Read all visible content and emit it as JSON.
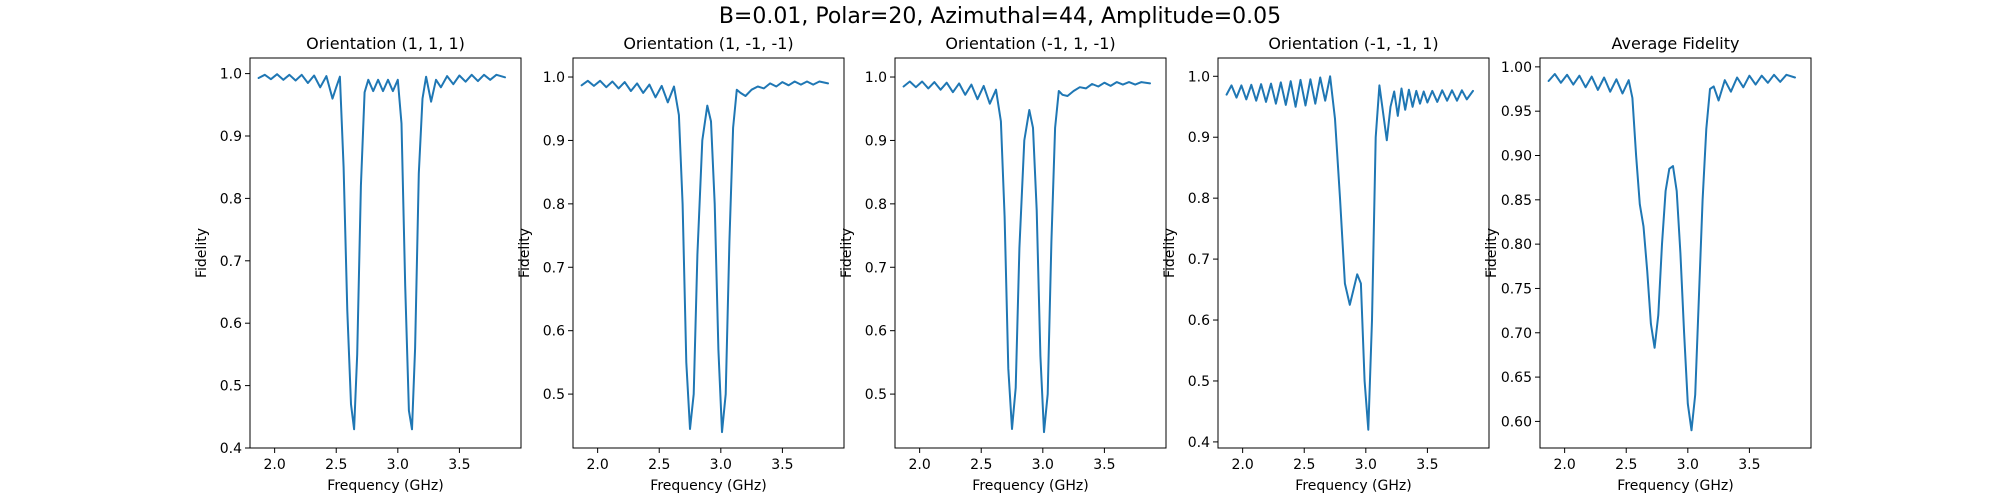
{
  "figure": {
    "suptitle": "B=0.01, Polar=20, Azimuthal=44, Amplitude=0.05",
    "line_color": "#1f77b4"
  },
  "chart_data": [
    {
      "type": "line",
      "title": "Orientation (1, 1, 1)",
      "xlabel": "Frequency (GHz)",
      "ylabel": "Fidelity",
      "xlim": [
        1.8,
        4.0
      ],
      "ylim": [
        0.4,
        1.025
      ],
      "xticks": [
        "2.0",
        "2.5",
        "3.0",
        "3.5"
      ],
      "yticks": [
        "0.4",
        "0.5",
        "0.6",
        "0.7",
        "0.8",
        "0.9",
        "1.0"
      ],
      "series": [
        {
          "x": [
            1.87,
            1.92,
            1.97,
            2.02,
            2.07,
            2.12,
            2.17,
            2.22,
            2.27,
            2.32,
            2.37,
            2.42,
            2.47,
            2.5,
            2.53,
            2.56,
            2.59,
            2.62,
            2.645,
            2.67,
            2.7,
            2.73,
            2.76,
            2.8,
            2.84,
            2.88,
            2.92,
            2.96,
            3.0,
            3.03,
            3.06,
            3.09,
            3.115,
            3.14,
            3.17,
            3.2,
            3.23,
            3.27,
            3.31,
            3.35,
            3.4,
            3.45,
            3.5,
            3.55,
            3.6,
            3.65,
            3.7,
            3.75,
            3.8,
            3.87
          ],
          "y": [
            0.993,
            0.998,
            0.991,
            0.999,
            0.99,
            0.998,
            0.989,
            0.998,
            0.985,
            0.997,
            0.978,
            0.996,
            0.96,
            0.978,
            0.995,
            0.85,
            0.62,
            0.47,
            0.43,
            0.55,
            0.82,
            0.97,
            0.99,
            0.972,
            0.99,
            0.972,
            0.99,
            0.972,
            0.99,
            0.92,
            0.66,
            0.46,
            0.43,
            0.56,
            0.84,
            0.96,
            0.995,
            0.955,
            0.99,
            0.978,
            0.996,
            0.983,
            0.997,
            0.987,
            0.998,
            0.988,
            0.998,
            0.99,
            0.998,
            0.994
          ]
        }
      ]
    },
    {
      "type": "line",
      "title": "Orientation (1, -1, -1)",
      "xlabel": "Frequency (GHz)",
      "ylabel": "Fidelity",
      "xlim": [
        1.8,
        4.0
      ],
      "ylim": [
        0.415,
        1.03
      ],
      "xticks": [
        "2.0",
        "2.5",
        "3.0",
        "3.5"
      ],
      "yticks": [
        "0.5",
        "0.6",
        "0.7",
        "0.8",
        "0.9",
        "1.0"
      ],
      "series": [
        {
          "x": [
            1.87,
            1.92,
            1.97,
            2.02,
            2.07,
            2.12,
            2.17,
            2.22,
            2.27,
            2.32,
            2.37,
            2.42,
            2.47,
            2.52,
            2.57,
            2.62,
            2.66,
            2.69,
            2.72,
            2.75,
            2.78,
            2.81,
            2.85,
            2.89,
            2.92,
            2.95,
            2.98,
            3.01,
            3.04,
            3.07,
            3.1,
            3.13,
            3.16,
            3.2,
            3.25,
            3.3,
            3.35,
            3.4,
            3.45,
            3.5,
            3.55,
            3.6,
            3.65,
            3.7,
            3.75,
            3.8,
            3.87
          ],
          "y": [
            0.987,
            0.994,
            0.986,
            0.994,
            0.984,
            0.993,
            0.982,
            0.992,
            0.978,
            0.99,
            0.975,
            0.988,
            0.968,
            0.986,
            0.96,
            0.985,
            0.94,
            0.8,
            0.55,
            0.445,
            0.5,
            0.72,
            0.9,
            0.955,
            0.93,
            0.8,
            0.57,
            0.44,
            0.5,
            0.74,
            0.92,
            0.98,
            0.975,
            0.97,
            0.98,
            0.985,
            0.982,
            0.99,
            0.985,
            0.992,
            0.987,
            0.993,
            0.988,
            0.993,
            0.988,
            0.993,
            0.99
          ]
        }
      ]
    },
    {
      "type": "line",
      "title": "Orientation (-1, 1, -1)",
      "xlabel": "Frequency (GHz)",
      "ylabel": "Fidelity",
      "xlim": [
        1.8,
        4.0
      ],
      "ylim": [
        0.415,
        1.03
      ],
      "xticks": [
        "2.0",
        "2.5",
        "3.0",
        "3.5"
      ],
      "yticks": [
        "0.5",
        "0.6",
        "0.7",
        "0.8",
        "0.9",
        "1.0"
      ],
      "series": [
        {
          "x": [
            1.87,
            1.92,
            1.97,
            2.02,
            2.07,
            2.12,
            2.17,
            2.22,
            2.27,
            2.32,
            2.37,
            2.42,
            2.47,
            2.52,
            2.57,
            2.62,
            2.66,
            2.69,
            2.72,
            2.75,
            2.78,
            2.81,
            2.85,
            2.89,
            2.92,
            2.95,
            2.98,
            3.01,
            3.04,
            3.07,
            3.1,
            3.13,
            3.16,
            3.2,
            3.25,
            3.3,
            3.35,
            3.4,
            3.45,
            3.5,
            3.55,
            3.6,
            3.65,
            3.7,
            3.75,
            3.8,
            3.87
          ],
          "y": [
            0.985,
            0.993,
            0.984,
            0.993,
            0.982,
            0.992,
            0.98,
            0.991,
            0.976,
            0.99,
            0.972,
            0.988,
            0.965,
            0.986,
            0.958,
            0.98,
            0.93,
            0.78,
            0.54,
            0.445,
            0.51,
            0.73,
            0.9,
            0.948,
            0.92,
            0.79,
            0.56,
            0.44,
            0.5,
            0.74,
            0.92,
            0.978,
            0.972,
            0.97,
            0.978,
            0.984,
            0.982,
            0.989,
            0.985,
            0.991,
            0.986,
            0.992,
            0.988,
            0.992,
            0.988,
            0.992,
            0.99
          ]
        }
      ]
    },
    {
      "type": "line",
      "title": "Orientation (-1, -1, 1)",
      "xlabel": "Frequency (GHz)",
      "ylabel": "Fidelity",
      "xlim": [
        1.8,
        4.0
      ],
      "ylim": [
        0.39,
        1.03
      ],
      "xticks": [
        "2.0",
        "2.5",
        "3.0",
        "3.5"
      ],
      "yticks": [
        "0.4",
        "0.5",
        "0.6",
        "0.7",
        "0.8",
        "0.9",
        "1.0"
      ],
      "series": [
        {
          "x": [
            1.87,
            1.91,
            1.95,
            1.99,
            2.03,
            2.07,
            2.11,
            2.15,
            2.19,
            2.23,
            2.27,
            2.31,
            2.35,
            2.39,
            2.43,
            2.47,
            2.51,
            2.55,
            2.59,
            2.63,
            2.67,
            2.71,
            2.75,
            2.79,
            2.83,
            2.87,
            2.9,
            2.93,
            2.96,
            2.99,
            3.02,
            3.05,
            3.08,
            3.11,
            3.14,
            3.17,
            3.2,
            3.23,
            3.26,
            3.29,
            3.32,
            3.35,
            3.38,
            3.41,
            3.44,
            3.47,
            3.5,
            3.54,
            3.58,
            3.62,
            3.66,
            3.7,
            3.74,
            3.78,
            3.82,
            3.87
          ],
          "y": [
            0.97,
            0.985,
            0.965,
            0.985,
            0.962,
            0.986,
            0.96,
            0.987,
            0.958,
            0.988,
            0.955,
            0.99,
            0.953,
            0.992,
            0.95,
            0.994,
            0.952,
            0.995,
            0.955,
            0.998,
            0.96,
            1.0,
            0.93,
            0.8,
            0.66,
            0.625,
            0.65,
            0.675,
            0.66,
            0.5,
            0.42,
            0.6,
            0.9,
            0.985,
            0.94,
            0.895,
            0.95,
            0.975,
            0.935,
            0.98,
            0.945,
            0.978,
            0.95,
            0.976,
            0.955,
            0.975,
            0.957,
            0.976,
            0.958,
            0.977,
            0.96,
            0.977,
            0.96,
            0.977,
            0.962,
            0.976
          ]
        }
      ]
    },
    {
      "type": "line",
      "title": "Average Fidelity",
      "xlabel": "Frequency (GHz)",
      "ylabel": "Fidelity",
      "xlim": [
        1.8,
        4.0
      ],
      "ylim": [
        0.57,
        1.01
      ],
      "xticks": [
        "2.0",
        "2.5",
        "3.0",
        "3.5"
      ],
      "yticks": [
        "0.60",
        "0.65",
        "0.70",
        "0.75",
        "0.80",
        "0.85",
        "0.90",
        "0.95",
        "1.00"
      ],
      "series": [
        {
          "x": [
            1.87,
            1.92,
            1.97,
            2.02,
            2.07,
            2.12,
            2.17,
            2.22,
            2.27,
            2.32,
            2.37,
            2.42,
            2.47,
            2.52,
            2.55,
            2.58,
            2.61,
            2.64,
            2.67,
            2.7,
            2.73,
            2.76,
            2.79,
            2.82,
            2.85,
            2.88,
            2.91,
            2.94,
            2.97,
            3.0,
            3.03,
            3.06,
            3.09,
            3.12,
            3.15,
            3.18,
            3.21,
            3.25,
            3.3,
            3.35,
            3.4,
            3.45,
            3.5,
            3.55,
            3.6,
            3.65,
            3.7,
            3.75,
            3.8,
            3.87
          ],
          "y": [
            0.984,
            0.992,
            0.982,
            0.991,
            0.98,
            0.99,
            0.977,
            0.989,
            0.974,
            0.988,
            0.972,
            0.986,
            0.97,
            0.985,
            0.965,
            0.9,
            0.845,
            0.82,
            0.77,
            0.71,
            0.683,
            0.72,
            0.8,
            0.86,
            0.885,
            0.888,
            0.86,
            0.79,
            0.7,
            0.62,
            0.59,
            0.63,
            0.74,
            0.85,
            0.93,
            0.975,
            0.978,
            0.962,
            0.985,
            0.972,
            0.988,
            0.977,
            0.99,
            0.98,
            0.99,
            0.982,
            0.991,
            0.983,
            0.991,
            0.988
          ]
        }
      ]
    }
  ]
}
